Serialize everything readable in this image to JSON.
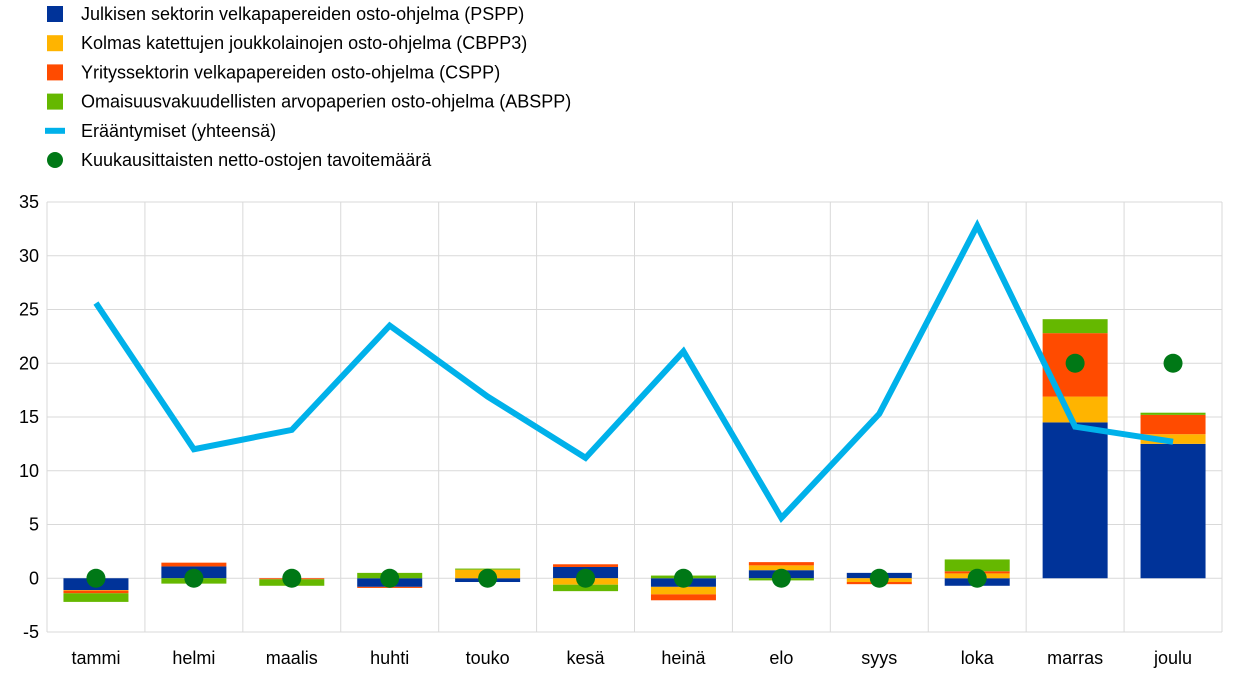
{
  "chart_data": {
    "type": "bar",
    "stacked": true,
    "categories": [
      "tammi",
      "helmi",
      "maalis",
      "huhti",
      "touko",
      "kesä",
      "heinä",
      "elo",
      "syys",
      "loka",
      "marras",
      "joulu"
    ],
    "series": [
      {
        "name": "Julkisen sektorin velkapapereiden osto-ohjelma (PSPP)",
        "kind": "bar",
        "color": "#003399",
        "values": [
          -1.1,
          1.1,
          0,
          -0.8,
          -0.35,
          1.05,
          -0.8,
          0.75,
          0.5,
          -0.7,
          14.5,
          12.5
        ]
      },
      {
        "name": "Kolmas katettujen joukkolainojen osto-ohjelma (CBPP3)",
        "kind": "bar",
        "color": "#ffb400",
        "values": [
          -0.05,
          0,
          0,
          0,
          0.8,
          -0.6,
          -0.7,
          0.45,
          -0.35,
          0.45,
          2.4,
          0.9
        ]
      },
      {
        "name": "Yrityssektorin velkapapereiden osto-ohjelma (CSPP)",
        "kind": "bar",
        "color": "#ff4b00",
        "values": [
          -0.25,
          0.35,
          -0.1,
          -0.1,
          0,
          0.25,
          -0.55,
          0.3,
          -0.2,
          0.2,
          5.9,
          1.8
        ]
      },
      {
        "name": "Omaisuusvakuudellisten arvopaperien osto-ohjelma (ABSPP)",
        "kind": "bar",
        "color": "#65b800",
        "values": [
          -0.8,
          -0.5,
          -0.6,
          0.5,
          0.1,
          -0.6,
          0.25,
          -0.2,
          0,
          1.1,
          1.3,
          0.2
        ]
      },
      {
        "name": "Erääntymiset (yhteensä)",
        "kind": "line",
        "color": "#00b1ea",
        "values": [
          25.6,
          12.0,
          13.8,
          23.5,
          16.9,
          11.2,
          21.1,
          5.6,
          15.3,
          32.8,
          14.1,
          12.7
        ]
      },
      {
        "name": "Kuukausittaisten netto-ostojen tavoitemäärä",
        "kind": "scatter",
        "color": "#007816",
        "values": [
          0,
          0,
          0,
          0,
          0,
          0,
          0,
          0,
          0,
          0,
          20,
          20
        ]
      }
    ],
    "ylim": [
      -5,
      35
    ],
    "yticks": [
      -5,
      0,
      5,
      10,
      15,
      20,
      25,
      30,
      35
    ],
    "grid": true,
    "legend_position": "top-left"
  }
}
